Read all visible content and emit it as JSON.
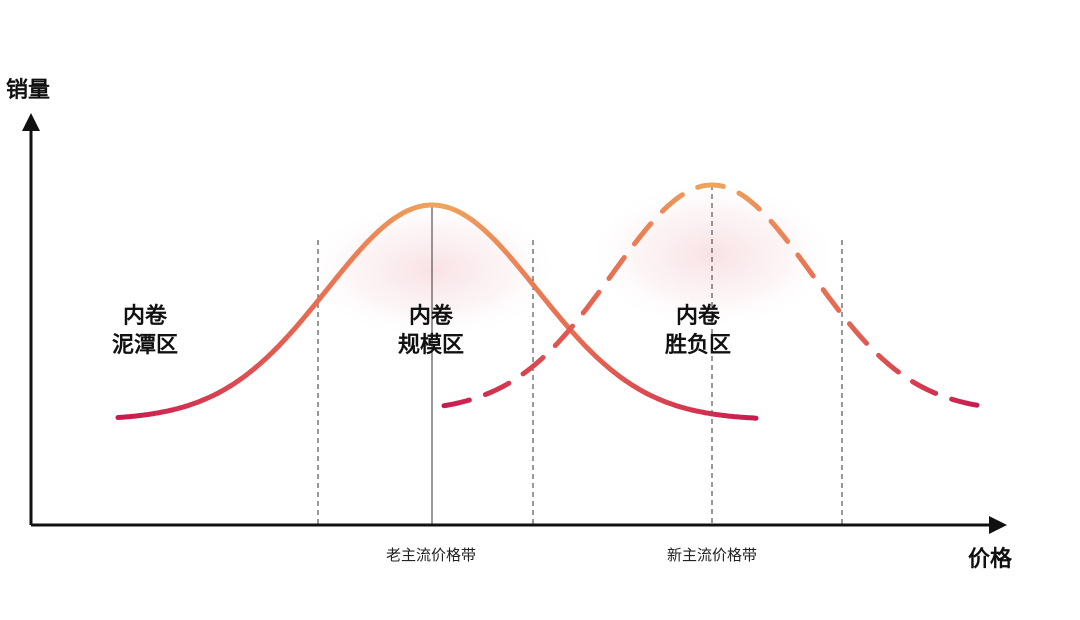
{
  "axes": {
    "y_label": "销量",
    "x_label": "价格"
  },
  "zones": [
    {
      "line1": "内卷",
      "line2": "泥潭区"
    },
    {
      "line1": "内卷",
      "line2": "规模区"
    },
    {
      "line1": "内卷",
      "line2": "胜负区"
    }
  ],
  "price_bands": {
    "old": "老主流价格带",
    "new": "新主流价格带"
  },
  "curves": {
    "old_curve": {
      "style": "solid",
      "color_start": "#c8184f",
      "color_end": "#f0a65c"
    },
    "new_curve": {
      "style": "dashed",
      "color_start": "#c8184f",
      "color_end": "#f0a65c"
    }
  },
  "colors": {
    "axis": "#111111",
    "glow": "#f3c9cf"
  }
}
